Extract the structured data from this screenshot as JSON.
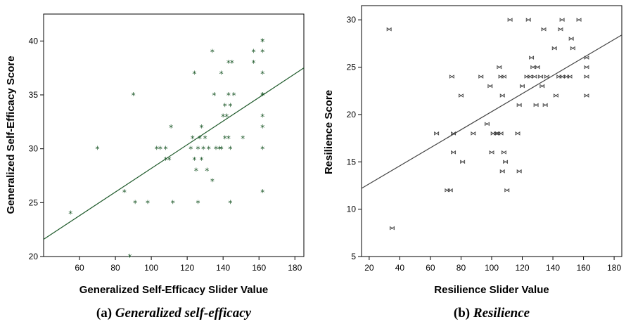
{
  "chart_data": [
    {
      "type": "scatter",
      "caption_prefix": "(a) ",
      "caption_text": "Generalized self-efficacy",
      "xlabel": "Generalized Self-Efficacy Slider Value",
      "ylabel": "Generalized Self-Efficacy Score",
      "xlim": [
        40,
        185
      ],
      "ylim": [
        20,
        42.5
      ],
      "xticks": [
        60,
        80,
        100,
        120,
        140,
        160,
        180
      ],
      "yticks": [
        20,
        25,
        30,
        35,
        40
      ],
      "marker": "*",
      "color": "#1f5a2b",
      "grid": false,
      "fit_line": {
        "x": [
          40,
          185
        ],
        "y": [
          21.6,
          37.5
        ]
      },
      "points": [
        [
          55,
          24
        ],
        [
          70,
          30
        ],
        [
          85,
          26
        ],
        [
          88,
          20
        ],
        [
          90,
          35
        ],
        [
          91,
          25
        ],
        [
          98,
          25
        ],
        [
          103,
          30
        ],
        [
          105,
          30
        ],
        [
          108,
          30
        ],
        [
          108,
          29
        ],
        [
          110,
          29
        ],
        [
          111,
          32
        ],
        [
          112,
          25
        ],
        [
          122,
          30
        ],
        [
          123,
          31
        ],
        [
          124,
          37
        ],
        [
          124,
          29
        ],
        [
          125,
          28
        ],
        [
          126,
          30
        ],
        [
          126,
          25
        ],
        [
          127,
          31
        ],
        [
          128,
          32
        ],
        [
          128,
          29
        ],
        [
          129,
          30
        ],
        [
          130,
          31
        ],
        [
          131,
          28
        ],
        [
          132,
          30
        ],
        [
          134,
          39
        ],
        [
          134,
          27
        ],
        [
          135,
          35
        ],
        [
          136,
          30
        ],
        [
          138,
          30
        ],
        [
          139,
          30
        ],
        [
          139,
          37
        ],
        [
          140,
          33
        ],
        [
          141,
          34
        ],
        [
          141,
          31
        ],
        [
          142,
          33
        ],
        [
          143,
          31
        ],
        [
          143,
          35
        ],
        [
          143,
          38
        ],
        [
          144,
          30
        ],
        [
          144,
          25
        ],
        [
          144,
          34
        ],
        [
          145,
          38
        ],
        [
          146,
          35
        ],
        [
          151,
          31
        ],
        [
          157,
          38
        ],
        [
          157,
          39
        ],
        [
          162,
          40
        ],
        [
          162,
          40
        ],
        [
          162,
          39
        ],
        [
          162,
          37
        ],
        [
          162,
          35
        ],
        [
          162,
          35
        ],
        [
          162,
          33
        ],
        [
          162,
          32
        ],
        [
          162,
          30
        ],
        [
          162,
          26
        ]
      ]
    },
    {
      "type": "scatter",
      "caption_prefix": "(b) ",
      "caption_text": "Resilience",
      "xlabel": "Resilience Slider Value",
      "ylabel": "Resilience Score",
      "xlim": [
        15,
        185
      ],
      "ylim": [
        5,
        31.5
      ],
      "xticks": [
        20,
        40,
        60,
        80,
        100,
        120,
        140,
        160,
        180
      ],
      "yticks": [
        5,
        10,
        15,
        20,
        25,
        30
      ],
      "marker": "bowtie",
      "color": "#444444",
      "grid": false,
      "fit_line": {
        "x": [
          15,
          185
        ],
        "y": [
          12.2,
          28.4
        ]
      },
      "points": [
        [
          33,
          29
        ],
        [
          35,
          8
        ],
        [
          64,
          18
        ],
        [
          71,
          12
        ],
        [
          73,
          12
        ],
        [
          74,
          24
        ],
        [
          75,
          16
        ],
        [
          75,
          18
        ],
        [
          80,
          22
        ],
        [
          81,
          15
        ],
        [
          88,
          18
        ],
        [
          93,
          24
        ],
        [
          97,
          19
        ],
        [
          99,
          23
        ],
        [
          100,
          16
        ],
        [
          101,
          18
        ],
        [
          103,
          18
        ],
        [
          104,
          18
        ],
        [
          105,
          25
        ],
        [
          106,
          18
        ],
        [
          106,
          24
        ],
        [
          107,
          14
        ],
        [
          107,
          22
        ],
        [
          108,
          16
        ],
        [
          108,
          24
        ],
        [
          109,
          15
        ],
        [
          110,
          12
        ],
        [
          112,
          30
        ],
        [
          117,
          18
        ],
        [
          118,
          14
        ],
        [
          118,
          21
        ],
        [
          120,
          23
        ],
        [
          123,
          24
        ],
        [
          124,
          30
        ],
        [
          125,
          24
        ],
        [
          126,
          26
        ],
        [
          127,
          25
        ],
        [
          128,
          24
        ],
        [
          129,
          21
        ],
        [
          130,
          25
        ],
        [
          132,
          24
        ],
        [
          133,
          23
        ],
        [
          134,
          29
        ],
        [
          135,
          21
        ],
        [
          136,
          24
        ],
        [
          141,
          27
        ],
        [
          142,
          22
        ],
        [
          144,
          24
        ],
        [
          145,
          29
        ],
        [
          146,
          24
        ],
        [
          146,
          30
        ],
        [
          149,
          24
        ],
        [
          151,
          24
        ],
        [
          152,
          28
        ],
        [
          153,
          27
        ],
        [
          157,
          30
        ],
        [
          162,
          26
        ],
        [
          162,
          25
        ],
        [
          162,
          24
        ],
        [
          162,
          22
        ]
      ]
    }
  ]
}
